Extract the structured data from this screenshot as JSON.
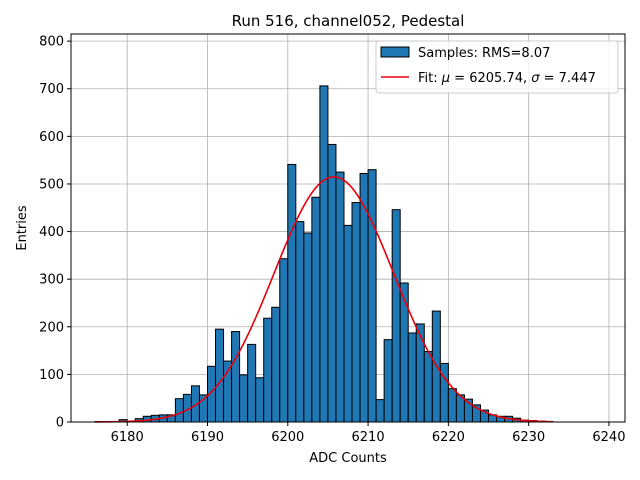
{
  "chart_data": {
    "type": "bar",
    "title": "Run 516, channel052, Pedestal",
    "xlabel": "ADC Counts",
    "ylabel": "Entries",
    "xlim": [
      6173,
      6242
    ],
    "ylim": [
      0,
      815
    ],
    "xticks": [
      6180,
      6190,
      6200,
      6210,
      6220,
      6230,
      6240
    ],
    "yticks": [
      0,
      100,
      200,
      300,
      400,
      500,
      600,
      700,
      800
    ],
    "grid": true,
    "legend_position": "top-right",
    "bin_width": 1,
    "histogram": {
      "name": "Samples: RMS=8.07",
      "color": "#1f77b4",
      "edge_color": "#000000",
      "bin_starts": [
        6176,
        6177,
        6178,
        6179,
        6180,
        6181,
        6182,
        6183,
        6184,
        6185,
        6186,
        6187,
        6188,
        6189,
        6190,
        6191,
        6192,
        6193,
        6194,
        6195,
        6196,
        6197,
        6198,
        6199,
        6200,
        6201,
        6202,
        6203,
        6204,
        6205,
        6206,
        6207,
        6208,
        6209,
        6210,
        6211,
        6212,
        6213,
        6214,
        6215,
        6216,
        6217,
        6218,
        6219,
        6220,
        6221,
        6222,
        6223,
        6224,
        6225,
        6226,
        6227,
        6228,
        6229,
        6230,
        6231,
        6232
      ],
      "values": [
        1,
        1,
        1,
        5,
        2,
        7,
        12,
        14,
        15,
        15,
        49,
        58,
        76,
        57,
        117,
        195,
        128,
        190,
        99,
        163,
        93,
        218,
        241,
        343,
        541,
        421,
        397,
        472,
        706,
        583,
        525,
        413,
        461,
        522,
        530,
        47,
        173,
        446,
        292,
        187,
        206,
        148,
        233,
        123,
        70,
        57,
        48,
        36,
        25,
        15,
        12,
        12,
        8,
        4,
        3,
        2,
        1
      ]
    },
    "fit": {
      "name": "Fit: μ = 6205.74, σ = 7.447",
      "legend_label_prefix": "Fit: ",
      "legend_label_mu": "μ",
      "legend_label_mid": " = 6205.74, ",
      "legend_label_sigma": "σ",
      "legend_label_suffix": " = 7.447",
      "color": "#e8000b",
      "mu": 6205.74,
      "sigma": 7.447,
      "amplitude": 515,
      "x_range": [
        6176,
        6233
      ]
    }
  }
}
